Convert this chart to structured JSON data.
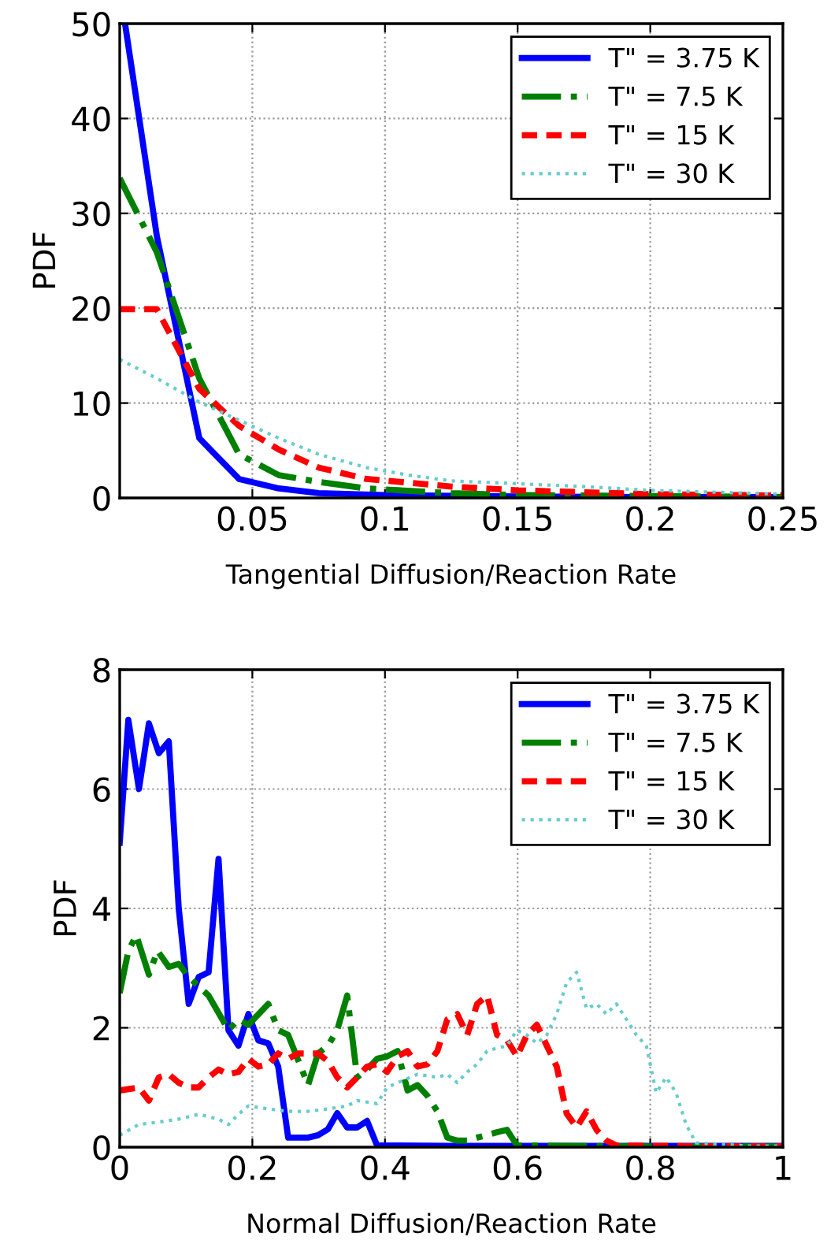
{
  "chart_data": [
    {
      "type": "line",
      "xlabel": "Tangential Diffusion/Reaction Rate",
      "ylabel": "PDF",
      "xlim": [
        0,
        0.25
      ],
      "ylim": [
        0,
        50
      ],
      "xticks": [
        0.05,
        0.1,
        0.15,
        0.2,
        0.25
      ],
      "yticks": [
        0,
        10,
        20,
        30,
        40,
        50
      ],
      "grid": true,
      "legend": "top right",
      "series": [
        {
          "name": "T\" = 3.75 K",
          "color": "#0000ff",
          "line_style": "solid",
          "x": [
            0.002,
            0.014,
            0.03,
            0.045,
            0.06,
            0.075,
            0.1,
            0.15,
            0.2,
            0.25
          ],
          "values": [
            50,
            27.6,
            6.3,
            2.0,
            1.0,
            0.5,
            0.3,
            0.15,
            0.1,
            0.1
          ]
        },
        {
          "name": "T\" = 7.5 K",
          "color": "#008000",
          "line_style": "dashdot",
          "x": [
            0,
            0.014,
            0.03,
            0.045,
            0.06,
            0.075,
            0.093,
            0.125,
            0.15,
            0.2,
            0.25
          ],
          "values": [
            33.7,
            25.9,
            12.6,
            4.6,
            2.4,
            1.7,
            1.0,
            0.5,
            0.3,
            0.2,
            0.1
          ]
        },
        {
          "name": "T\" = 15 K",
          "color": "#ff0000",
          "line_style": "dashed",
          "x": [
            0,
            0.014,
            0.03,
            0.045,
            0.06,
            0.075,
            0.093,
            0.109,
            0.125,
            0.15,
            0.175,
            0.2,
            0.25
          ],
          "values": [
            19.9,
            19.9,
            11.5,
            7.6,
            5.1,
            3.2,
            2.0,
            1.6,
            1.2,
            0.8,
            0.6,
            0.4,
            0.25
          ]
        },
        {
          "name": "T\" = 30 K",
          "color": "#66cccc",
          "line_style": "dotted",
          "x": [
            0,
            0.014,
            0.03,
            0.045,
            0.06,
            0.075,
            0.093,
            0.109,
            0.125,
            0.15,
            0.175,
            0.2,
            0.25
          ],
          "values": [
            14.6,
            12.6,
            10.1,
            8.2,
            6.3,
            4.6,
            3.2,
            2.4,
            1.8,
            1.5,
            1.2,
            0.8,
            0.4
          ]
        }
      ]
    },
    {
      "type": "line",
      "xlabel": "Normal Diffusion/Reaction Rate",
      "ylabel": "PDF",
      "xlim": [
        0,
        1
      ],
      "ylim": [
        0,
        8
      ],
      "xticks": [
        0,
        0.2,
        0.4,
        0.6,
        0.8,
        1
      ],
      "yticks": [
        0,
        2,
        4,
        6,
        8
      ],
      "grid": true,
      "legend": "top right",
      "series": [
        {
          "name": "T\" = 3.75 K",
          "color": "#0000ff",
          "line_style": "solid",
          "x": [
            0,
            0.013,
            0.029,
            0.044,
            0.059,
            0.074,
            0.089,
            0.104,
            0.119,
            0.134,
            0.149,
            0.164,
            0.179,
            0.194,
            0.209,
            0.224,
            0.239,
            0.254,
            0.269,
            0.284,
            0.299,
            0.314,
            0.328,
            0.343,
            0.358,
            0.373,
            0.388,
            0.5,
            0.6,
            0.8,
            1.0
          ],
          "values": [
            5.1,
            7.16,
            6.0,
            7.1,
            6.6,
            6.8,
            4.0,
            2.4,
            2.85,
            2.93,
            4.83,
            1.96,
            1.7,
            2.23,
            1.79,
            1.74,
            1.35,
            0.16,
            0.16,
            0.16,
            0.2,
            0.3,
            0.57,
            0.33,
            0.33,
            0.44,
            0.03,
            0.02,
            0.02,
            0.02,
            0.02
          ]
        },
        {
          "name": "T\" = 7.5 K",
          "color": "#008000",
          "line_style": "dashdot",
          "x": [
            0,
            0.013,
            0.025,
            0.044,
            0.057,
            0.074,
            0.089,
            0.104,
            0.134,
            0.164,
            0.179,
            0.194,
            0.224,
            0.239,
            0.254,
            0.284,
            0.299,
            0.314,
            0.328,
            0.343,
            0.358,
            0.373,
            0.388,
            0.403,
            0.419,
            0.434,
            0.449,
            0.464,
            0.479,
            0.494,
            0.509,
            0.524,
            0.539,
            0.554,
            0.569,
            0.584,
            0.599,
            0.8,
            1.0
          ],
          "values": [
            2.58,
            3.29,
            3.55,
            2.89,
            3.29,
            3.02,
            3.07,
            2.85,
            2.54,
            1.96,
            2.14,
            2.05,
            2.4,
            1.96,
            1.88,
            1.04,
            1.57,
            1.7,
            1.96,
            2.54,
            1.17,
            1.3,
            1.48,
            1.52,
            1.61,
            0.95,
            1.04,
            0.86,
            0.6,
            0.16,
            0.11,
            0.11,
            0.16,
            0.2,
            0.25,
            0.29,
            0.03,
            0.01,
            0.01
          ]
        },
        {
          "name": "T\" = 15 K",
          "color": "#ff0000",
          "line_style": "dashed",
          "x": [
            0,
            0.029,
            0.044,
            0.059,
            0.074,
            0.089,
            0.104,
            0.119,
            0.134,
            0.149,
            0.164,
            0.179,
            0.194,
            0.209,
            0.224,
            0.239,
            0.254,
            0.269,
            0.284,
            0.299,
            0.314,
            0.328,
            0.343,
            0.358,
            0.373,
            0.388,
            0.403,
            0.419,
            0.434,
            0.449,
            0.464,
            0.479,
            0.494,
            0.509,
            0.524,
            0.539,
            0.554,
            0.569,
            0.584,
            0.599,
            0.614,
            0.629,
            0.644,
            0.659,
            0.674,
            0.689,
            0.704,
            0.719,
            0.734,
            0.749,
            0.9,
            1.0
          ],
          "values": [
            0.95,
            1.0,
            0.78,
            1.17,
            1.22,
            1.08,
            1.0,
            1.0,
            1.17,
            1.3,
            1.22,
            1.26,
            1.48,
            1.35,
            1.39,
            1.57,
            1.48,
            1.57,
            1.57,
            1.57,
            1.44,
            1.17,
            1.0,
            1.17,
            1.35,
            1.39,
            1.26,
            1.52,
            1.61,
            1.35,
            1.39,
            1.61,
            2.14,
            2.23,
            1.88,
            2.4,
            2.54,
            1.88,
            1.79,
            1.52,
            1.88,
            2.05,
            1.7,
            1.35,
            0.56,
            0.33,
            0.6,
            0.29,
            0.11,
            0.03,
            0.01,
            0.01
          ]
        },
        {
          "name": "T\" = 30 K",
          "color": "#66cccc",
          "line_style": "dotted",
          "x": [
            0,
            0.029,
            0.059,
            0.089,
            0.119,
            0.149,
            0.164,
            0.179,
            0.194,
            0.224,
            0.254,
            0.284,
            0.314,
            0.343,
            0.358,
            0.388,
            0.403,
            0.419,
            0.449,
            0.479,
            0.494,
            0.509,
            0.524,
            0.539,
            0.554,
            0.569,
            0.584,
            0.599,
            0.614,
            0.629,
            0.644,
            0.659,
            0.674,
            0.689,
            0.704,
            0.719,
            0.734,
            0.749,
            0.764,
            0.779,
            0.794,
            0.809,
            0.824,
            0.839,
            0.854,
            0.869,
            0.95,
            1.0
          ],
          "values": [
            0.2,
            0.38,
            0.42,
            0.47,
            0.55,
            0.47,
            0.38,
            0.55,
            0.69,
            0.64,
            0.6,
            0.6,
            0.64,
            0.69,
            0.78,
            0.73,
            1.0,
            1.08,
            1.22,
            1.17,
            1.22,
            1.08,
            1.26,
            1.39,
            1.61,
            1.66,
            1.7,
            1.96,
            1.88,
            1.74,
            1.88,
            2.23,
            2.76,
            2.93,
            2.32,
            2.4,
            2.23,
            2.4,
            2.14,
            1.88,
            1.7,
            0.91,
            1.17,
            0.91,
            0.38,
            0.07,
            0.02,
            0.02
          ]
        }
      ]
    }
  ]
}
